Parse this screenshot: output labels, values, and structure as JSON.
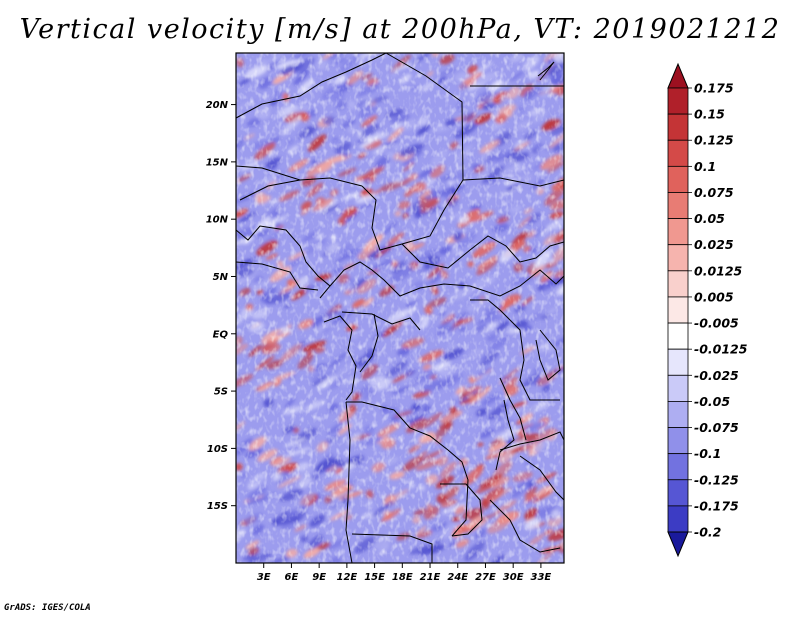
{
  "title": "Vertical velocity [m/s] at 200hPa, VT: 2019021212",
  "footer": "GrADS: IGES/COLA",
  "map": {
    "lon_range": [
      0,
      35.5
    ],
    "lat_range": [
      -20,
      24.5
    ],
    "y_ticks": [
      {
        "value": 20,
        "label": "20N"
      },
      {
        "value": 15,
        "label": "15N"
      },
      {
        "value": 10,
        "label": "10N"
      },
      {
        "value": 5,
        "label": "5N"
      },
      {
        "value": 0,
        "label": "EQ"
      },
      {
        "value": -5,
        "label": "5S"
      },
      {
        "value": -10,
        "label": "10S"
      },
      {
        "value": -15,
        "label": "15S"
      }
    ],
    "x_ticks": [
      {
        "value": 3,
        "label": "3E"
      },
      {
        "value": 6,
        "label": "6E"
      },
      {
        "value": 9,
        "label": "9E"
      },
      {
        "value": 12,
        "label": "12E"
      },
      {
        "value": 15,
        "label": "15E"
      },
      {
        "value": 18,
        "label": "18E"
      },
      {
        "value": 21,
        "label": "21E"
      },
      {
        "value": 24,
        "label": "24E"
      },
      {
        "value": 27,
        "label": "27E"
      },
      {
        "value": 30,
        "label": "30E"
      },
      {
        "value": 33,
        "label": "33E"
      }
    ]
  },
  "colorbar": {
    "levels": [
      {
        "label": "0.175",
        "color": "#b0202a"
      },
      {
        "label": "0.15",
        "color": "#c43436"
      },
      {
        "label": "0.125",
        "color": "#d44a48"
      },
      {
        "label": "0.1",
        "color": "#e0625c"
      },
      {
        "label": "0.075",
        "color": "#e87c74"
      },
      {
        "label": "0.05",
        "color": "#f09890"
      },
      {
        "label": "0.025",
        "color": "#f6b4ae"
      },
      {
        "label": "0.0125",
        "color": "#f9d0cc"
      },
      {
        "label": "0.005",
        "color": "#fce8e6"
      },
      {
        "label": "-0.005",
        "color": "#ffffff"
      },
      {
        "label": "-0.0125",
        "color": "#e6e6fc"
      },
      {
        "label": "-0.025",
        "color": "#cacaf8"
      },
      {
        "label": "-0.05",
        "color": "#aeaef2"
      },
      {
        "label": "-0.075",
        "color": "#9090ea"
      },
      {
        "label": "-0.1",
        "color": "#7272e0"
      },
      {
        "label": "-0.125",
        "color": "#5656d4"
      },
      {
        "label": "-0.175",
        "color": "#3c3cc4"
      },
      {
        "label": "-0.2",
        "color": "#2828b0"
      }
    ],
    "top_arrow_color": "#9c1020",
    "bottom_arrow_color": "#1a1a9c"
  }
}
